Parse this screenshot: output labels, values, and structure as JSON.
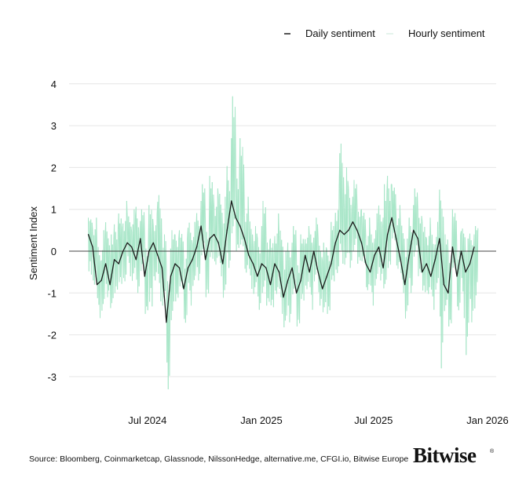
{
  "chart_data": {
    "type": "line",
    "title": "",
    "xlabel": "",
    "ylabel": "Sentiment Index",
    "ylim": [
      -3.5,
      4
    ],
    "yticks": [
      "4",
      "3",
      "2",
      "1",
      "0",
      "-1",
      "-2",
      "-3"
    ],
    "xticks": [
      {
        "label": "Jul 2024",
        "date": "2024-07-01"
      },
      {
        "label": "Jan 2025",
        "date": "2025-01-01"
      },
      {
        "label": "Jul 2025",
        "date": "2025-07-01"
      },
      {
        "label": "Jan 2026",
        "date": "2026-01-01"
      }
    ],
    "grid": true,
    "legend_position": "top-right",
    "x": [
      "2024-03-25",
      "2024-04-01",
      "2024-04-08",
      "2024-04-15",
      "2024-04-22",
      "2024-04-29",
      "2024-05-06",
      "2024-05-13",
      "2024-05-20",
      "2024-05-27",
      "2024-06-03",
      "2024-06-10",
      "2024-06-17",
      "2024-06-24",
      "2024-07-01",
      "2024-07-08",
      "2024-07-15",
      "2024-07-22",
      "2024-07-29",
      "2024-08-05",
      "2024-08-12",
      "2024-08-19",
      "2024-08-26",
      "2024-09-02",
      "2024-09-09",
      "2024-09-16",
      "2024-09-23",
      "2024-09-30",
      "2024-10-07",
      "2024-10-14",
      "2024-10-21",
      "2024-10-28",
      "2024-11-04",
      "2024-11-11",
      "2024-11-18",
      "2024-11-25",
      "2024-12-02",
      "2024-12-09",
      "2024-12-16",
      "2024-12-23",
      "2024-12-30",
      "2025-01-06",
      "2025-01-13",
      "2025-01-20",
      "2025-01-27",
      "2025-02-03",
      "2025-02-10",
      "2025-02-17",
      "2025-02-24",
      "2025-03-03",
      "2025-03-10",
      "2025-03-17",
      "2025-03-24",
      "2025-03-31",
      "2025-04-07",
      "2025-04-14",
      "2025-04-21",
      "2025-04-28",
      "2025-05-05",
      "2025-05-12",
      "2025-05-19",
      "2025-05-26",
      "2025-06-02",
      "2025-06-09",
      "2025-06-16",
      "2025-06-23",
      "2025-06-30",
      "2025-07-07",
      "2025-07-14",
      "2025-07-21",
      "2025-07-28",
      "2025-08-04",
      "2025-08-11",
      "2025-08-18",
      "2025-08-25",
      "2025-09-01",
      "2025-09-08",
      "2025-09-15",
      "2025-09-22",
      "2025-09-29",
      "2025-10-06",
      "2025-10-13",
      "2025-10-20",
      "2025-10-27",
      "2025-11-03",
      "2025-11-10",
      "2025-11-17",
      "2025-11-24",
      "2025-12-01",
      "2025-12-08"
    ],
    "series": [
      {
        "name": "Daily sentiment",
        "color": "#1a1a1a",
        "values": [
          0.4,
          0.1,
          -0.8,
          -0.7,
          -0.3,
          -0.8,
          -0.2,
          -0.3,
          0.0,
          0.2,
          0.1,
          -0.2,
          0.3,
          -0.6,
          0.0,
          0.2,
          -0.1,
          -0.4,
          -1.7,
          -0.6,
          -0.3,
          -0.4,
          -0.9,
          -0.4,
          -0.2,
          0.1,
          0.6,
          -0.2,
          0.3,
          0.4,
          0.2,
          -0.3,
          0.5,
          1.2,
          0.8,
          0.6,
          0.3,
          -0.1,
          -0.3,
          -0.6,
          -0.3,
          -0.4,
          -0.8,
          -0.3,
          -0.5,
          -1.1,
          -0.7,
          -0.4,
          -1.0,
          -0.7,
          -0.1,
          -0.5,
          0.0,
          -0.5,
          -0.9,
          -0.6,
          -0.3,
          0.2,
          0.5,
          0.4,
          0.5,
          0.7,
          0.5,
          0.2,
          -0.3,
          -0.5,
          -0.1,
          0.1,
          -0.4,
          0.4,
          0.8,
          0.3,
          -0.2,
          -0.8,
          -0.1,
          0.5,
          0.3,
          -0.5,
          -0.3,
          -0.6,
          -0.2,
          0.3,
          -0.8,
          -1.0,
          0.1,
          -0.6,
          0.0,
          -0.5,
          -0.3,
          0.1
        ]
      },
      {
        "name": "Hourly sentiment",
        "color": "#a8e6c8",
        "high": [
          0.8,
          0.8,
          0.2,
          0.5,
          0.8,
          0.4,
          1.0,
          0.9,
          1.2,
          0.9,
          1.0,
          1.2,
          1.0,
          0.6,
          1.1,
          0.9,
          1.5,
          0.4,
          -0.3,
          0.5,
          0.7,
          0.5,
          0.3,
          0.8,
          0.7,
          1.0,
          1.6,
          1.0,
          1.8,
          1.5,
          1.5,
          1.3,
          2.2,
          3.7,
          2.5,
          2.7,
          1.3,
          0.8,
          0.6,
          0.4,
          1.2,
          0.7,
          0.3,
          0.9,
          0.6,
          0.0,
          0.3,
          0.6,
          0.2,
          0.4,
          0.6,
          0.5,
          0.8,
          0.4,
          0.2,
          0.3,
          0.7,
          1.5,
          2.8,
          2.0,
          1.6,
          1.7,
          1.3,
          1.0,
          0.8,
          0.5,
          0.9,
          1.2,
          1.6,
          2.4,
          1.6,
          1.1,
          0.7,
          0.3,
          0.9,
          1.5,
          1.2,
          0.7,
          0.8,
          0.5,
          0.7,
          1.6,
          0.4,
          0.3,
          1.0,
          0.4,
          0.6,
          0.3,
          0.5,
          0.6
        ],
        "low": [
          -1.2,
          -0.9,
          -1.6,
          -1.5,
          -1.1,
          -1.6,
          -1.0,
          -1.1,
          -0.8,
          -0.6,
          -0.8,
          -1.0,
          -0.8,
          -1.5,
          -2.2,
          -0.8,
          -1.2,
          -1.4,
          -3.3,
          -2.1,
          -1.2,
          -1.2,
          -1.8,
          -1.3,
          -0.9,
          -0.7,
          -0.4,
          -1.1,
          -0.5,
          -0.4,
          -0.6,
          -1.2,
          -0.4,
          0.1,
          0.0,
          -0.2,
          -0.6,
          -0.9,
          -1.1,
          -1.4,
          -1.3,
          -1.3,
          -1.7,
          -1.1,
          -1.5,
          -1.9,
          -1.7,
          -1.3,
          -1.8,
          -1.5,
          -1.0,
          -1.4,
          -0.8,
          -1.3,
          -1.7,
          -1.5,
          -1.0,
          -0.6,
          -0.3,
          -0.4,
          -0.4,
          -0.3,
          -0.3,
          -0.6,
          -1.0,
          -1.3,
          -0.9,
          -0.7,
          -1.1,
          -0.4,
          -0.1,
          -0.5,
          -1.0,
          -1.7,
          -1.0,
          -0.4,
          -0.6,
          -1.3,
          -1.1,
          -1.4,
          -1.0,
          -2.8,
          -1.7,
          -1.8,
          -0.8,
          -1.5,
          -1.6,
          -2.7,
          -1.7,
          -2.0
        ]
      }
    ]
  },
  "legend": {
    "daily_label": "Daily sentiment",
    "hourly_label": "Hourly sentiment"
  },
  "footer": {
    "source": "Source: Bloomberg, Coinmarketcap, Glassnode, NilssonHedge, alternative.me, CFGI.io, Bitwise Europe",
    "logo": "Bitwise"
  }
}
